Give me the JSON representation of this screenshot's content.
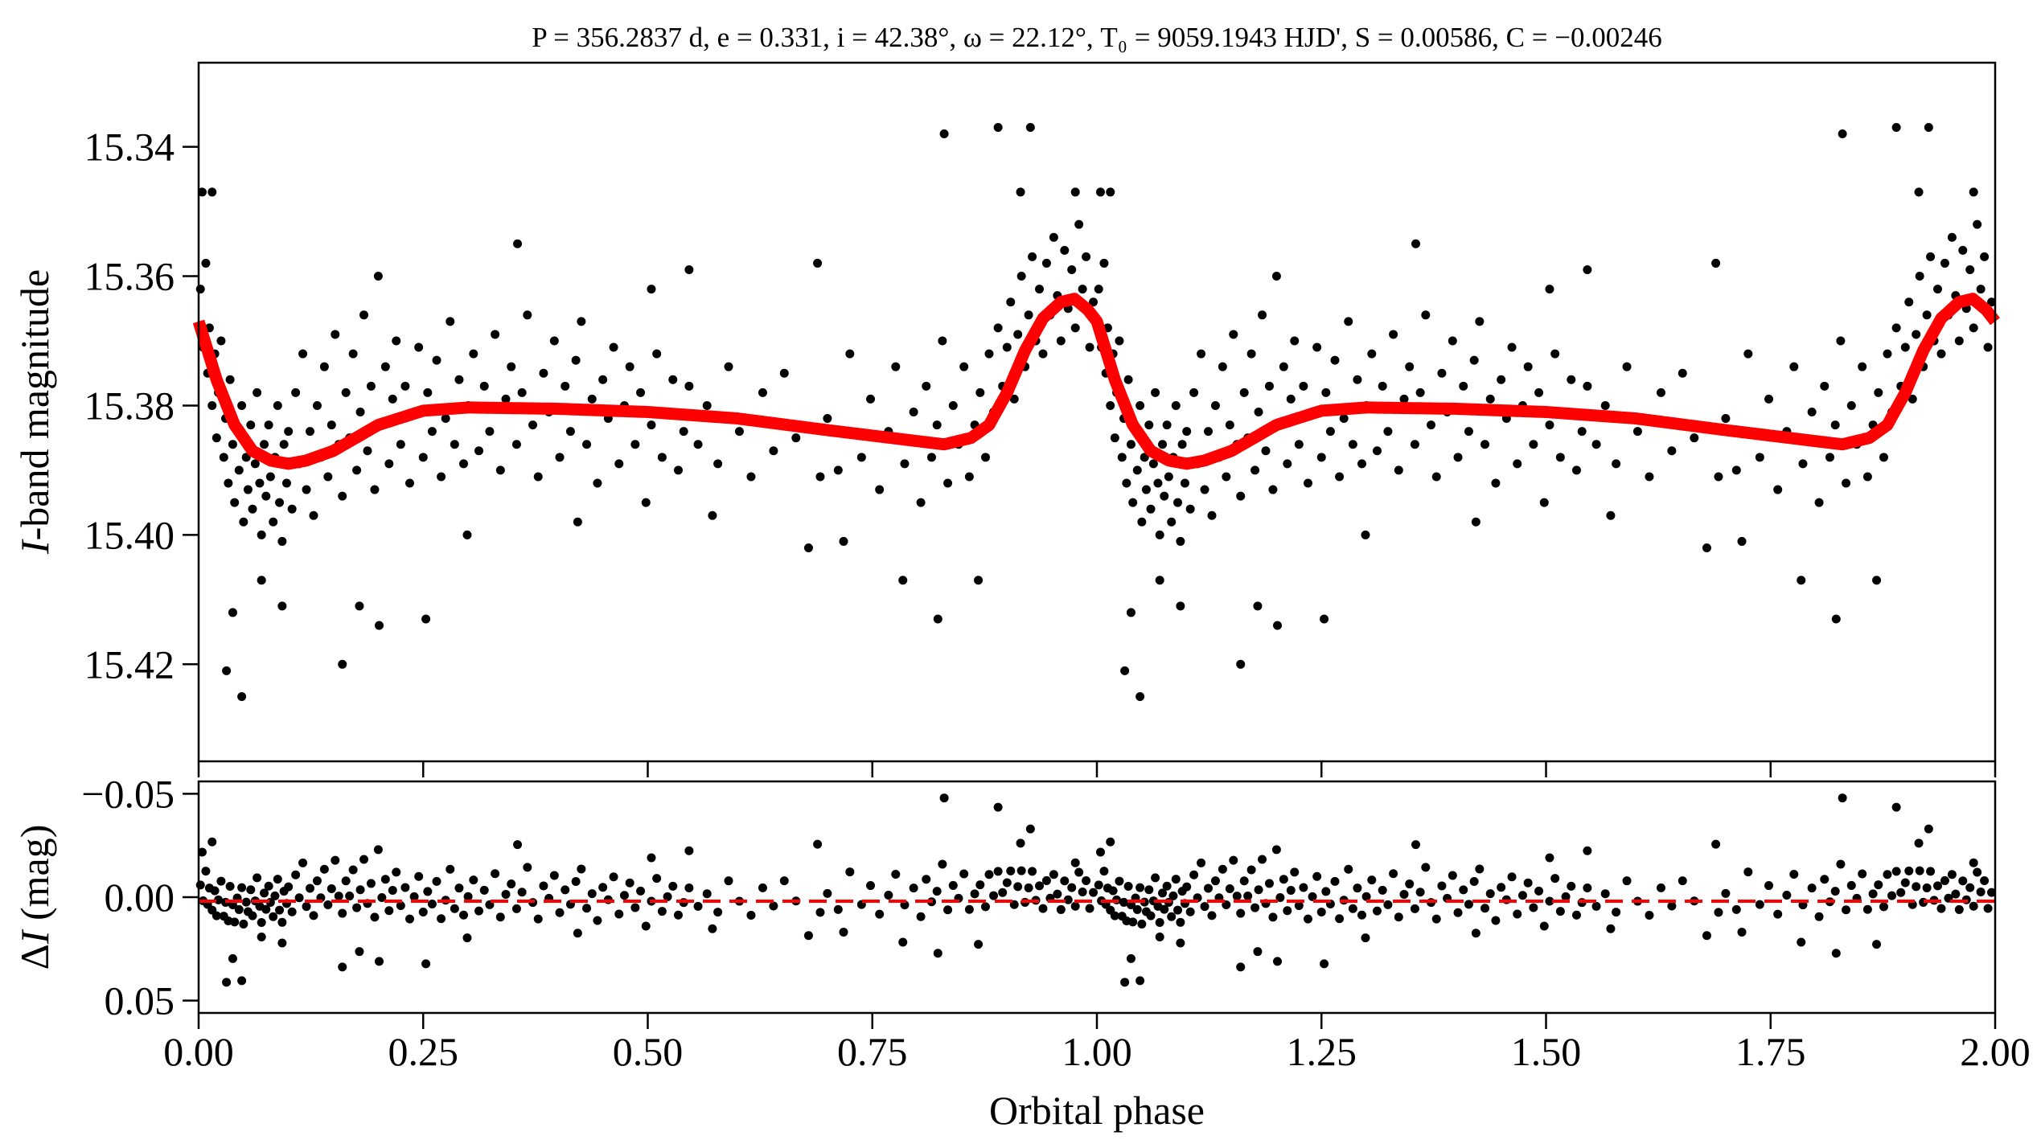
{
  "chart_data": [
    {
      "type": "scatter",
      "panel": "light-curve",
      "title": "P = 356.2837 d, e = 0.331, i = 42.38°, ω = 22.12°, T₀ = 9059.1943 HJD', S = 0.00586, C = −0.00246",
      "xlabel": "Orbital phase",
      "ylabel_var": "I",
      "ylabel_rest": "-band magnitude",
      "xlim": [
        0,
        2
      ],
      "ylim": [
        15.327,
        15.435
      ],
      "y_inverted": true,
      "xticks": [
        "0.00",
        "0.25",
        "0.50",
        "0.75",
        "1.00",
        "1.25",
        "1.50",
        "1.75",
        "2.00"
      ],
      "xtick_values": [
        0,
        0.25,
        0.5,
        0.75,
        1,
        1.25,
        1.5,
        1.75,
        2
      ],
      "yticks": [
        "15.34",
        "15.36",
        "15.38",
        "15.40",
        "15.42"
      ],
      "ytick_values": [
        15.34,
        15.36,
        15.38,
        15.4,
        15.42
      ],
      "repeat_cycles": 2,
      "point_color": "#000000",
      "model_color": "#ff0000",
      "model": {
        "phase": [
          0,
          0.02,
          0.04,
          0.06,
          0.08,
          0.1,
          0.12,
          0.15,
          0.2,
          0.25,
          0.3,
          0.4,
          0.5,
          0.6,
          0.7,
          0.8,
          0.83,
          0.86,
          0.88,
          0.9,
          0.92,
          0.94,
          0.96,
          0.975,
          0.99,
          1.0
        ],
        "mag": [
          15.367,
          15.376,
          15.383,
          15.387,
          15.3885,
          15.389,
          15.3885,
          15.387,
          15.383,
          15.3808,
          15.3803,
          15.3805,
          15.381,
          15.382,
          15.3838,
          15.3855,
          15.386,
          15.385,
          15.383,
          15.378,
          15.3715,
          15.3665,
          15.364,
          15.3635,
          15.3652,
          15.367
        ]
      },
      "observations": [
        [
          0.002,
          15.362
        ],
        [
          0.005,
          15.371
        ],
        [
          0.008,
          15.358
        ],
        [
          0.01,
          15.375
        ],
        [
          0.012,
          15.368
        ],
        [
          0.015,
          15.38
        ],
        [
          0.018,
          15.372
        ],
        [
          0.02,
          15.385
        ],
        [
          0.022,
          15.378
        ],
        [
          0.025,
          15.37
        ],
        [
          0.028,
          15.388
        ],
        [
          0.03,
          15.382
        ],
        [
          0.033,
          15.392
        ],
        [
          0.035,
          15.376
        ],
        [
          0.038,
          15.386
        ],
        [
          0.04,
          15.395
        ],
        [
          0.043,
          15.384
        ],
        [
          0.045,
          15.39
        ],
        [
          0.048,
          15.38
        ],
        [
          0.05,
          15.398
        ],
        [
          0.053,
          15.388
        ],
        [
          0.055,
          15.393
        ],
        [
          0.058,
          15.383
        ],
        [
          0.06,
          15.396
        ],
        [
          0.063,
          15.389
        ],
        [
          0.065,
          15.378
        ],
        [
          0.068,
          15.392
        ],
        [
          0.07,
          15.4
        ],
        [
          0.073,
          15.386
        ],
        [
          0.075,
          15.394
        ],
        [
          0.078,
          15.383
        ],
        [
          0.08,
          15.391
        ],
        [
          0.083,
          15.398
        ],
        [
          0.085,
          15.388
        ],
        [
          0.088,
          15.38
        ],
        [
          0.09,
          15.395
        ],
        [
          0.093,
          15.401
        ],
        [
          0.095,
          15.386
        ],
        [
          0.098,
          15.392
        ],
        [
          0.1,
          15.384
        ],
        [
          0.104,
          15.396
        ],
        [
          0.108,
          15.378
        ],
        [
          0.112,
          15.389
        ],
        [
          0.116,
          15.372
        ],
        [
          0.12,
          15.393
        ],
        [
          0.124,
          15.384
        ],
        [
          0.128,
          15.397
        ],
        [
          0.132,
          15.38
        ],
        [
          0.136,
          15.388
        ],
        [
          0.14,
          15.374
        ],
        [
          0.144,
          15.391
        ],
        [
          0.148,
          15.383
        ],
        [
          0.152,
          15.369
        ],
        [
          0.156,
          15.386
        ],
        [
          0.16,
          15.394
        ],
        [
          0.164,
          15.378
        ],
        [
          0.168,
          15.385
        ],
        [
          0.172,
          15.372
        ],
        [
          0.176,
          15.39
        ],
        [
          0.18,
          15.381
        ],
        [
          0.184,
          15.366
        ],
        [
          0.188,
          15.387
        ],
        [
          0.192,
          15.377
        ],
        [
          0.196,
          15.393
        ],
        [
          0.2,
          15.36
        ],
        [
          0.204,
          15.383
        ],
        [
          0.208,
          15.374
        ],
        [
          0.212,
          15.389
        ],
        [
          0.216,
          15.379
        ],
        [
          0.22,
          15.37
        ],
        [
          0.225,
          15.386
        ],
        [
          0.23,
          15.377
        ],
        [
          0.235,
          15.392
        ],
        [
          0.24,
          15.381
        ],
        [
          0.245,
          15.371
        ],
        [
          0.25,
          15.388
        ],
        [
          0.255,
          15.378
        ],
        [
          0.26,
          15.384
        ],
        [
          0.265,
          15.373
        ],
        [
          0.27,
          15.391
        ],
        [
          0.275,
          15.382
        ],
        [
          0.28,
          15.367
        ],
        [
          0.285,
          15.386
        ],
        [
          0.29,
          15.376
        ],
        [
          0.295,
          15.389
        ],
        [
          0.3,
          15.38
        ],
        [
          0.306,
          15.372
        ],
        [
          0.312,
          15.387
        ],
        [
          0.318,
          15.377
        ],
        [
          0.324,
          15.384
        ],
        [
          0.33,
          15.369
        ],
        [
          0.336,
          15.39
        ],
        [
          0.342,
          15.379
        ],
        [
          0.348,
          15.374
        ],
        [
          0.354,
          15.386
        ],
        [
          0.36,
          15.378
        ],
        [
          0.366,
          15.366
        ],
        [
          0.372,
          15.383
        ],
        [
          0.378,
          15.391
        ],
        [
          0.384,
          15.375
        ],
        [
          0.39,
          15.381
        ],
        [
          0.396,
          15.37
        ],
        [
          0.402,
          15.388
        ],
        [
          0.408,
          15.377
        ],
        [
          0.414,
          15.384
        ],
        [
          0.42,
          15.373
        ],
        [
          0.426,
          15.367
        ],
        [
          0.432,
          15.386
        ],
        [
          0.438,
          15.379
        ],
        [
          0.444,
          15.392
        ],
        [
          0.45,
          15.376
        ],
        [
          0.456,
          15.382
        ],
        [
          0.462,
          15.371
        ],
        [
          0.468,
          15.389
        ],
        [
          0.474,
          15.38
        ],
        [
          0.48,
          15.374
        ],
        [
          0.486,
          15.386
        ],
        [
          0.492,
          15.378
        ],
        [
          0.498,
          15.395
        ],
        [
          0.504,
          15.383
        ],
        [
          0.51,
          15.372
        ],
        [
          0.516,
          15.388
        ],
        [
          0.522,
          15.381
        ],
        [
          0.528,
          15.376
        ],
        [
          0.534,
          15.39
        ],
        [
          0.54,
          15.384
        ],
        [
          0.546,
          15.377
        ],
        [
          0.556,
          15.386
        ],
        [
          0.566,
          15.38
        ],
        [
          0.578,
          15.389
        ],
        [
          0.59,
          15.374
        ],
        [
          0.602,
          15.384
        ],
        [
          0.615,
          15.391
        ],
        [
          0.628,
          15.378
        ],
        [
          0.64,
          15.387
        ],
        [
          0.652,
          15.375
        ],
        [
          0.665,
          15.385
        ],
        [
          0.7,
          15.382
        ],
        [
          0.712,
          15.39
        ],
        [
          0.725,
          15.372
        ],
        [
          0.738,
          15.388
        ],
        [
          0.748,
          15.379
        ],
        [
          0.758,
          15.393
        ],
        [
          0.768,
          15.384
        ],
        [
          0.776,
          15.374
        ],
        [
          0.786,
          15.389
        ],
        [
          0.796,
          15.381
        ],
        [
          0.804,
          15.395
        ],
        [
          0.81,
          15.377
        ],
        [
          0.816,
          15.388
        ],
        [
          0.822,
          15.383
        ],
        [
          0.828,
          15.37
        ],
        [
          0.834,
          15.392
        ],
        [
          0.84,
          15.38
        ],
        [
          0.846,
          15.386
        ],
        [
          0.852,
          15.374
        ],
        [
          0.858,
          15.391
        ],
        [
          0.864,
          15.383
        ],
        [
          0.87,
          15.378
        ],
        [
          0.876,
          15.388
        ],
        [
          0.88,
          15.372
        ],
        [
          0.885,
          15.381
        ],
        [
          0.89,
          15.368
        ],
        [
          0.895,
          15.377
        ],
        [
          0.9,
          15.371
        ],
        [
          0.904,
          15.364
        ],
        [
          0.908,
          15.379
        ],
        [
          0.912,
          15.369
        ],
        [
          0.916,
          15.36
        ],
        [
          0.92,
          15.374
        ],
        [
          0.924,
          15.366
        ],
        [
          0.928,
          15.357
        ],
        [
          0.932,
          15.37
        ],
        [
          0.936,
          15.362
        ],
        [
          0.94,
          15.372
        ],
        [
          0.944,
          15.358
        ],
        [
          0.948,
          15.366
        ],
        [
          0.952,
          15.354
        ],
        [
          0.956,
          15.363
        ],
        [
          0.96,
          15.37
        ],
        [
          0.964,
          15.356
        ],
        [
          0.968,
          15.365
        ],
        [
          0.972,
          15.359
        ],
        [
          0.976,
          15.368
        ],
        [
          0.98,
          15.352
        ],
        [
          0.984,
          15.362
        ],
        [
          0.988,
          15.357
        ],
        [
          0.992,
          15.371
        ],
        [
          0.996,
          15.364
        ],
        [
          0.89,
          15.337
        ],
        [
          0.83,
          15.338
        ],
        [
          0.926,
          15.337
        ],
        [
          0.031,
          15.421
        ],
        [
          0.048,
          15.425
        ],
        [
          0.038,
          15.412
        ],
        [
          0.16,
          15.42
        ],
        [
          0.201,
          15.414
        ],
        [
          0.179,
          15.411
        ],
        [
          0.253,
          15.413
        ],
        [
          0.093,
          15.411
        ],
        [
          0.07,
          15.407
        ],
        [
          0.004,
          15.347
        ],
        [
          0.015,
          15.347
        ],
        [
          0.355,
          15.355
        ],
        [
          0.504,
          15.362
        ],
        [
          0.546,
          15.359
        ],
        [
          0.689,
          15.358
        ],
        [
          0.784,
          15.407
        ],
        [
          0.823,
          15.413
        ],
        [
          0.868,
          15.407
        ],
        [
          0.915,
          15.347
        ],
        [
          0.976,
          15.347
        ],
        [
          0.679,
          15.402
        ],
        [
          0.718,
          15.401
        ],
        [
          0.572,
          15.397
        ],
        [
          0.422,
          15.398
        ],
        [
          0.299,
          15.4
        ],
        [
          0.692,
          15.391
        ]
      ]
    },
    {
      "type": "scatter",
      "panel": "residuals",
      "ylabel_delta": "Δ",
      "ylabel_var": "I",
      "ylabel_rest": " (mag)",
      "xlim": [
        0,
        2
      ],
      "ylim": [
        -0.056,
        0.056
      ],
      "y_inverted": true,
      "yticks": [
        "−0.05",
        "0.00",
        "0.05"
      ],
      "ytick_values": [
        -0.05,
        0,
        0.05
      ],
      "residual_definition": "observation minus model",
      "zero_line_color": "#ff0000",
      "zero_line_style": "dashed"
    }
  ]
}
